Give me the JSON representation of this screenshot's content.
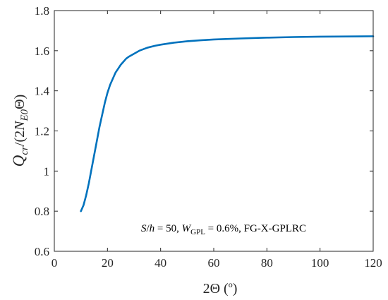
{
  "chart_data": {
    "type": "line",
    "xlabel_parts": {
      "prefix": "2Θ (",
      "superscript": "o",
      "suffix": ")"
    },
    "ylabel_parts": {
      "q": "Q",
      "cr": "cr",
      "mid": "/(2",
      "n": "N",
      "e0": "E0",
      "tail": "Θ)"
    },
    "xlim": [
      0,
      120
    ],
    "ylim": [
      0.6,
      1.8
    ],
    "x_ticks": [
      0,
      20,
      40,
      60,
      80,
      100,
      120
    ],
    "x_tick_labels": [
      "0",
      "20",
      "40",
      "60",
      "80",
      "100",
      "120"
    ],
    "y_ticks": [
      0.6,
      0.8,
      1.0,
      1.2,
      1.4,
      1.6,
      1.8
    ],
    "y_tick_labels": [
      "0.6",
      "0.8",
      "1",
      "1.2",
      "1.4",
      "1.6",
      "1.8"
    ],
    "grid": false,
    "annotation_parts": {
      "s": "S",
      "slash": "/",
      "h": "h",
      "eq1": " = 50, ",
      "w": "W",
      "gpl": "GPL",
      "eq2": " = 0.6%, FG-X-GPLRC"
    },
    "series": [
      {
        "color": "#0072BD",
        "x": [
          10,
          11,
          12,
          13,
          14,
          15,
          16,
          17,
          18,
          19,
          20,
          21,
          22,
          23,
          24,
          25,
          26,
          27,
          28,
          30,
          32,
          35,
          38,
          40,
          45,
          50,
          55,
          60,
          70,
          80,
          90,
          100,
          110,
          120
        ],
        "y": [
          0.8,
          0.83,
          0.88,
          0.94,
          1.01,
          1.08,
          1.15,
          1.22,
          1.28,
          1.34,
          1.39,
          1.43,
          1.46,
          1.49,
          1.51,
          1.53,
          1.545,
          1.56,
          1.57,
          1.585,
          1.6,
          1.615,
          1.625,
          1.63,
          1.64,
          1.647,
          1.652,
          1.656,
          1.661,
          1.665,
          1.668,
          1.67,
          1.671,
          1.672
        ]
      }
    ]
  }
}
